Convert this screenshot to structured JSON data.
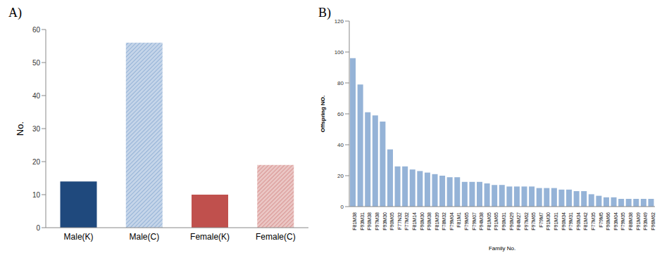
{
  "chart_data": [
    {
      "type": "bar",
      "title": "A)",
      "y_label": "No.",
      "categories": [
        "Male(K)",
        "Male(C)",
        "Female(K)",
        "Female(C)"
      ],
      "values": [
        14,
        56,
        10,
        19
      ],
      "colors": [
        "#1f497d",
        "#95b3d7",
        "#c0504d",
        "#d99694"
      ],
      "ylim": [
        0,
        60
      ],
      "yticks": [
        0,
        10,
        20,
        30,
        40,
        50,
        60
      ],
      "grid": false
    },
    {
      "type": "bar",
      "title": "B)",
      "y_label": "Offspring NO.",
      "x_label": "Family No.",
      "categories": [
        "F81M38",
        "F93M31",
        "F90M38",
        "F97M38",
        "F93M30",
        "F90M05",
        "F77N32",
        "F77M32",
        "F81M14",
        "F90M30",
        "F90M38",
        "F81M39",
        "F78M32",
        "F79M04",
        "F81M1",
        "F79M65",
        "F79M07",
        "F94M38",
        "F81M05",
        "F91M65",
        "F90M31",
        "F90M29",
        "F84M27",
        "F97M62",
        "F97M65",
        "F79M7",
        "F91M30",
        "F91M31",
        "F90M34",
        "F79M31",
        "F90M34",
        "F81M42",
        "F77M35",
        "F79M5",
        "F90M66",
        "F93M04",
        "F79M35",
        "F88M38",
        "F91M09",
        "F93M49",
        "F96M62"
      ],
      "values": [
        96,
        79,
        61,
        59,
        55,
        37,
        26,
        26,
        24,
        23,
        22,
        21,
        20,
        19,
        19,
        16,
        16,
        16,
        15,
        14,
        14,
        13,
        13,
        13,
        13,
        12,
        12,
        12,
        11,
        11,
        10,
        10,
        8,
        7,
        6,
        6,
        5,
        5,
        5,
        5,
        5
      ],
      "color": "#95b3d7",
      "ylim": [
        0,
        120
      ],
      "yticks": [
        0,
        20,
        40,
        60,
        80,
        100,
        120
      ],
      "grid": false
    }
  ]
}
